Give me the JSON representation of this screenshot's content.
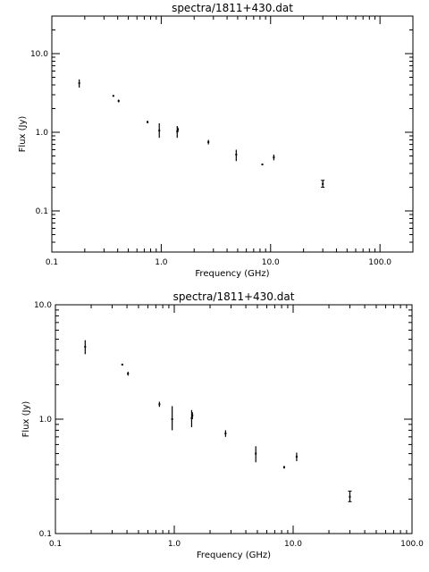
{
  "chart_data": [
    {
      "type": "scatter",
      "title": "spectra/1811+430.dat",
      "xlabel": "Frequency (GHz)",
      "ylabel": "Flux (Jy)",
      "xscale": "log",
      "yscale": "log",
      "xlim": [
        0.1,
        200
      ],
      "ylim": [
        0.03,
        30
      ],
      "xticks": [
        {
          "v": 0.1,
          "label": "0.1"
        },
        {
          "v": 1,
          "label": "1.0"
        },
        {
          "v": 10,
          "label": "10.0"
        },
        {
          "v": 100,
          "label": "100.0"
        }
      ],
      "yticks": [
        {
          "v": 0.1,
          "label": "0.1"
        },
        {
          "v": 1,
          "label": "1.0"
        },
        {
          "v": 10,
          "label": "10.0"
        }
      ],
      "points": [
        {
          "x": 0.178,
          "y": 4.2,
          "lo": 3.7,
          "hi": 4.7
        },
        {
          "x": 0.365,
          "y": 2.9,
          "lo": 2.85,
          "hi": 2.95
        },
        {
          "x": 0.408,
          "y": 2.5,
          "lo": 2.4,
          "hi": 2.6
        },
        {
          "x": 0.75,
          "y": 1.35,
          "lo": 1.3,
          "hi": 1.4
        },
        {
          "x": 0.96,
          "y": 1.05,
          "lo": 0.85,
          "hi": 1.3
        },
        {
          "x": 1.4,
          "y": 1.02,
          "lo": 0.85,
          "hi": 1.2
        },
        {
          "x": 1.42,
          "y": 1.08,
          "lo": 1.0,
          "hi": 1.15
        },
        {
          "x": 2.7,
          "y": 0.75,
          "lo": 0.7,
          "hi": 0.8
        },
        {
          "x": 4.85,
          "y": 0.52,
          "lo": 0.43,
          "hi": 0.6
        },
        {
          "x": 8.4,
          "y": 0.39,
          "lo": 0.38,
          "hi": 0.4
        },
        {
          "x": 10.7,
          "y": 0.48,
          "lo": 0.44,
          "hi": 0.52
        },
        {
          "x": 30,
          "y": 0.22,
          "lo": 0.2,
          "hi": 0.245
        }
      ]
    },
    {
      "type": "scatter",
      "title": "spectra/1811+430.dat",
      "xlabel": "Frequency (GHz)",
      "ylabel": "Flux (Jy)",
      "xscale": "log",
      "yscale": "log",
      "xlim": [
        0.1,
        100
      ],
      "ylim": [
        0.1,
        10
      ],
      "xticks": [
        {
          "v": 0.1,
          "label": "0.1"
        },
        {
          "v": 1,
          "label": "1.0"
        },
        {
          "v": 10,
          "label": "10.0"
        },
        {
          "v": 100,
          "label": "100.0"
        }
      ],
      "yticks": [
        {
          "v": 0.1,
          "label": "0.1"
        },
        {
          "v": 1,
          "label": "1.0"
        },
        {
          "v": 10,
          "label": "10.0"
        }
      ],
      "points": [
        {
          "x": 0.178,
          "y": 4.3,
          "lo": 3.7,
          "hi": 4.9
        },
        {
          "x": 0.365,
          "y": 3.0,
          "lo": 2.95,
          "hi": 3.05
        },
        {
          "x": 0.408,
          "y": 2.5,
          "lo": 2.4,
          "hi": 2.6
        },
        {
          "x": 0.75,
          "y": 1.35,
          "lo": 1.28,
          "hi": 1.42
        },
        {
          "x": 0.96,
          "y": 1.0,
          "lo": 0.8,
          "hi": 1.3
        },
        {
          "x": 1.4,
          "y": 1.02,
          "lo": 0.85,
          "hi": 1.2
        },
        {
          "x": 1.42,
          "y": 1.08,
          "lo": 1.0,
          "hi": 1.15
        },
        {
          "x": 2.7,
          "y": 0.75,
          "lo": 0.7,
          "hi": 0.8
        },
        {
          "x": 4.85,
          "y": 0.5,
          "lo": 0.42,
          "hi": 0.58
        },
        {
          "x": 8.4,
          "y": 0.38,
          "lo": 0.37,
          "hi": 0.39
        },
        {
          "x": 10.7,
          "y": 0.47,
          "lo": 0.43,
          "hi": 0.51
        },
        {
          "x": 30,
          "y": 0.21,
          "lo": 0.19,
          "hi": 0.235
        }
      ]
    }
  ]
}
